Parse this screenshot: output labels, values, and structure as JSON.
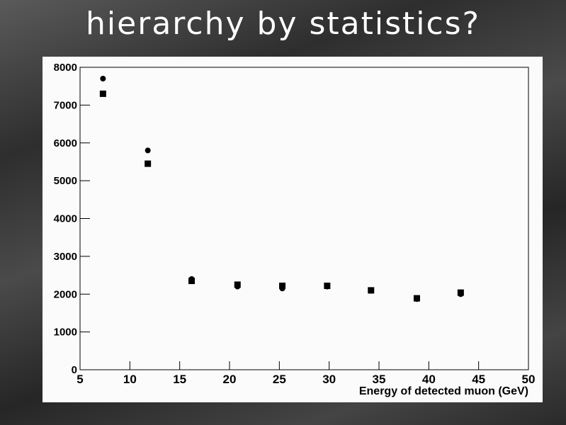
{
  "chart_data": {
    "type": "scatter",
    "title": "hierarchy by statistics?",
    "x_label": "Energy of detected muon (GeV)",
    "xlim": [
      5,
      50
    ],
    "xticks": [
      5,
      10,
      15,
      20,
      25,
      30,
      35,
      40,
      45,
      50
    ],
    "ylim": [
      0,
      8000
    ],
    "yticks": [
      0,
      1000,
      2000,
      3000,
      4000,
      5000,
      6000,
      7000,
      8000
    ],
    "grid": false,
    "series": [
      {
        "color": "#000000",
        "marker": "circle",
        "x": [
          7.3,
          11.8,
          16.2,
          20.8,
          25.3,
          29.8,
          34.2,
          38.8,
          43.2
        ],
        "values": [
          7700,
          5800,
          2400,
          2200,
          2150,
          2200,
          2090,
          1870,
          2000
        ]
      },
      {
        "color": "#000000",
        "marker": "square",
        "x": [
          7.3,
          11.8,
          16.2,
          20.8,
          25.3,
          29.8,
          34.2,
          38.8,
          43.2
        ],
        "values": [
          7300,
          5450,
          2350,
          2250,
          2220,
          2220,
          2100,
          1890,
          2040
        ]
      }
    ]
  }
}
